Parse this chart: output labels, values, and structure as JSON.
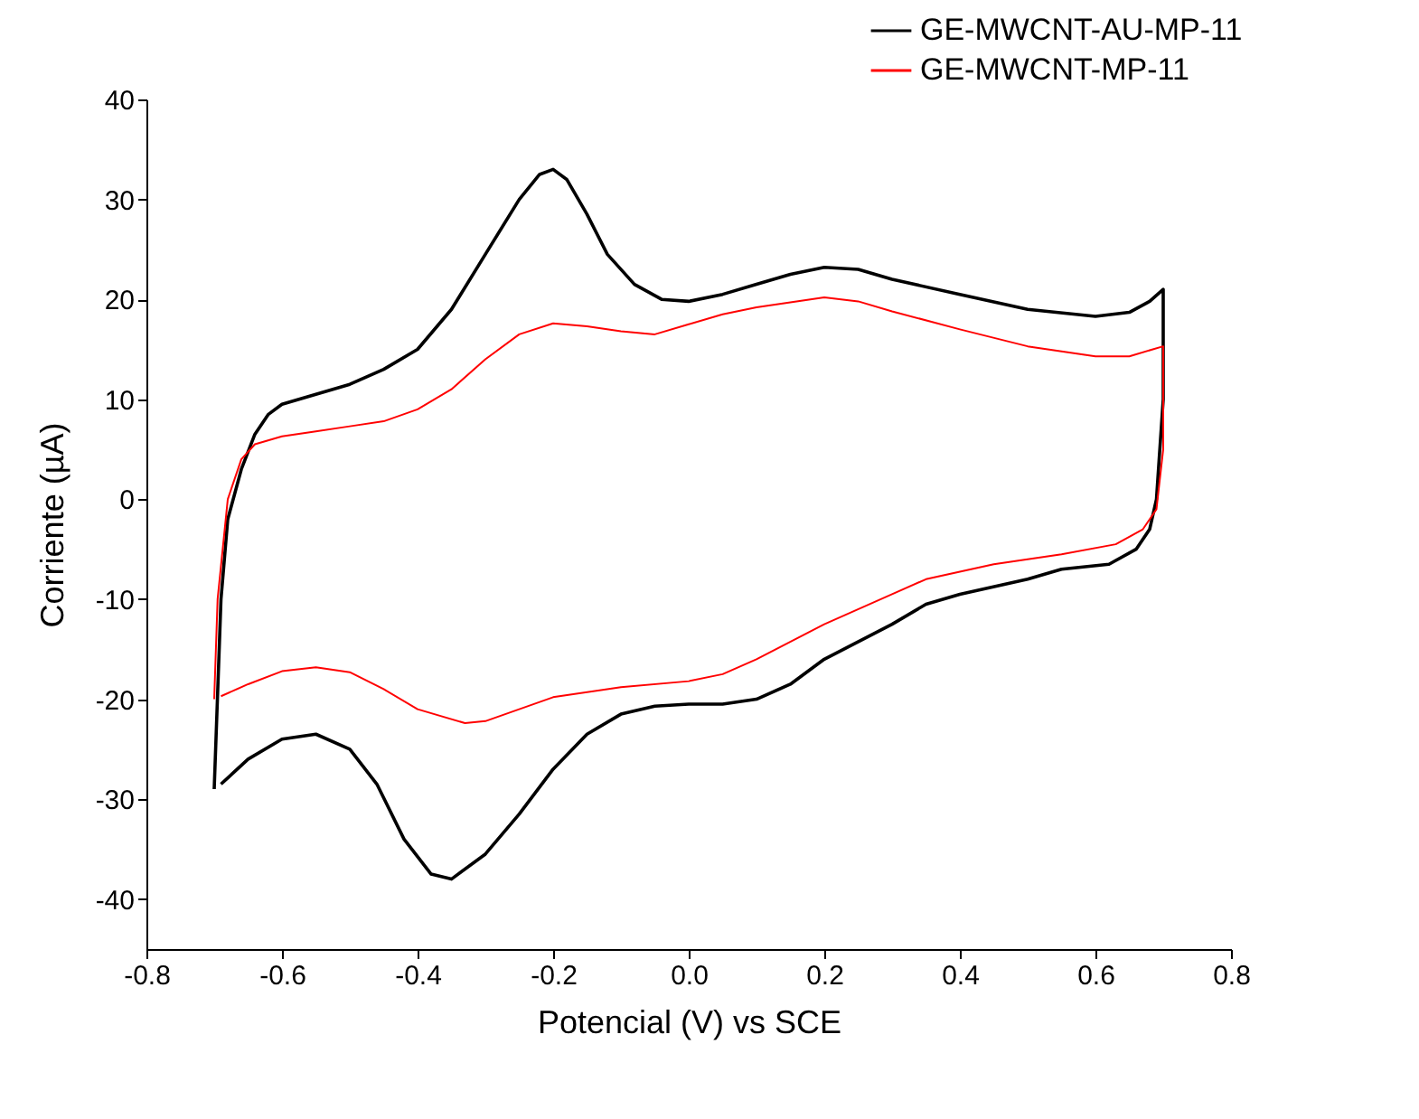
{
  "chart_data": {
    "type": "line",
    "xlabel": "Potencial (V) vs SCE",
    "ylabel": "Corriente (µA)",
    "xlim": [
      -0.8,
      0.8
    ],
    "xticks": [
      -0.8,
      -0.6,
      -0.4,
      -0.2,
      {
        "value": 0,
        "label": "0.0"
      },
      0.2,
      0.4,
      0.6,
      0.8
    ],
    "ylim": [
      -45,
      40
    ],
    "yticks": [
      -40,
      -30,
      -20,
      -10,
      0,
      10,
      20,
      30,
      40
    ],
    "grid": false,
    "legend": "top right",
    "line_style": "solid",
    "marker": "none",
    "series": [
      {
        "name": "GE-MWCNT-AU-MP-11",
        "color": "#000000",
        "x": [
          -0.7,
          -0.69,
          -0.68,
          -0.66,
          -0.64,
          -0.62,
          -0.6,
          -0.55,
          -0.5,
          -0.45,
          -0.4,
          -0.35,
          -0.3,
          -0.25,
          -0.22,
          -0.2,
          -0.18,
          -0.15,
          -0.12,
          -0.08,
          -0.04,
          0.0,
          0.05,
          0.1,
          0.15,
          0.2,
          0.25,
          0.3,
          0.4,
          0.5,
          0.6,
          0.65,
          0.68,
          0.7,
          0.7,
          0.69,
          0.68,
          0.66,
          0.62,
          0.55,
          0.5,
          0.4,
          0.35,
          0.3,
          0.2,
          0.15,
          0.1,
          0.05,
          0.0,
          -0.05,
          -0.1,
          -0.15,
          -0.2,
          -0.25,
          -0.3,
          -0.35,
          -0.38,
          -0.42,
          -0.46,
          -0.5,
          -0.55,
          -0.6,
          -0.65,
          -0.69
        ],
        "values": [
          -29,
          -10,
          -2,
          3,
          6.5,
          8.5,
          9.5,
          10.5,
          11.5,
          13,
          15,
          19,
          24.5,
          30,
          32.5,
          33,
          32,
          28.5,
          24.5,
          21.5,
          20,
          19.8,
          20.5,
          21.5,
          22.5,
          23.2,
          23,
          22,
          20.5,
          19,
          18.3,
          18.7,
          19.8,
          21,
          10,
          0,
          -3,
          -5,
          -6.5,
          -7,
          -8,
          -9.5,
          -10.5,
          -12.5,
          -16,
          -18.5,
          -20,
          -20.5,
          -20.5,
          -20.7,
          -21.5,
          -23.5,
          -27,
          -31.5,
          -35.5,
          -38,
          -37.5,
          -34,
          -28.5,
          -25,
          -23.5,
          -24,
          -26,
          -28.5
        ]
      },
      {
        "name": "GE-MWCNT-MP-11",
        "color": "#ff0000",
        "x": [
          -0.7,
          -0.695,
          -0.68,
          -0.66,
          -0.64,
          -0.6,
          -0.55,
          -0.5,
          -0.45,
          -0.4,
          -0.35,
          -0.3,
          -0.25,
          -0.2,
          -0.15,
          -0.1,
          -0.05,
          0.0,
          0.05,
          0.1,
          0.2,
          0.25,
          0.3,
          0.4,
          0.5,
          0.6,
          0.65,
          0.7,
          0.7,
          0.69,
          0.67,
          0.63,
          0.55,
          0.45,
          0.35,
          0.3,
          0.2,
          0.1,
          0.05,
          0.0,
          -0.1,
          -0.2,
          -0.25,
          -0.3,
          -0.33,
          -0.4,
          -0.45,
          -0.5,
          -0.55,
          -0.6,
          -0.65,
          -0.69
        ],
        "values": [
          -20,
          -10,
          0,
          4,
          5.5,
          6.3,
          6.8,
          7.3,
          7.8,
          9,
          11,
          14,
          16.5,
          17.6,
          17.3,
          16.8,
          16.5,
          17.5,
          18.5,
          19.2,
          20.2,
          19.8,
          18.8,
          17,
          15.3,
          14.3,
          14.3,
          15.3,
          5,
          -1,
          -3,
          -4.5,
          -5.5,
          -6.5,
          -8,
          -9.5,
          -12.5,
          -16,
          -17.5,
          -18.2,
          -18.8,
          -19.8,
          -21,
          -22.2,
          -22.4,
          -21,
          -19,
          -17.3,
          -16.8,
          -17.2,
          -18.5,
          -19.7
        ]
      }
    ]
  }
}
